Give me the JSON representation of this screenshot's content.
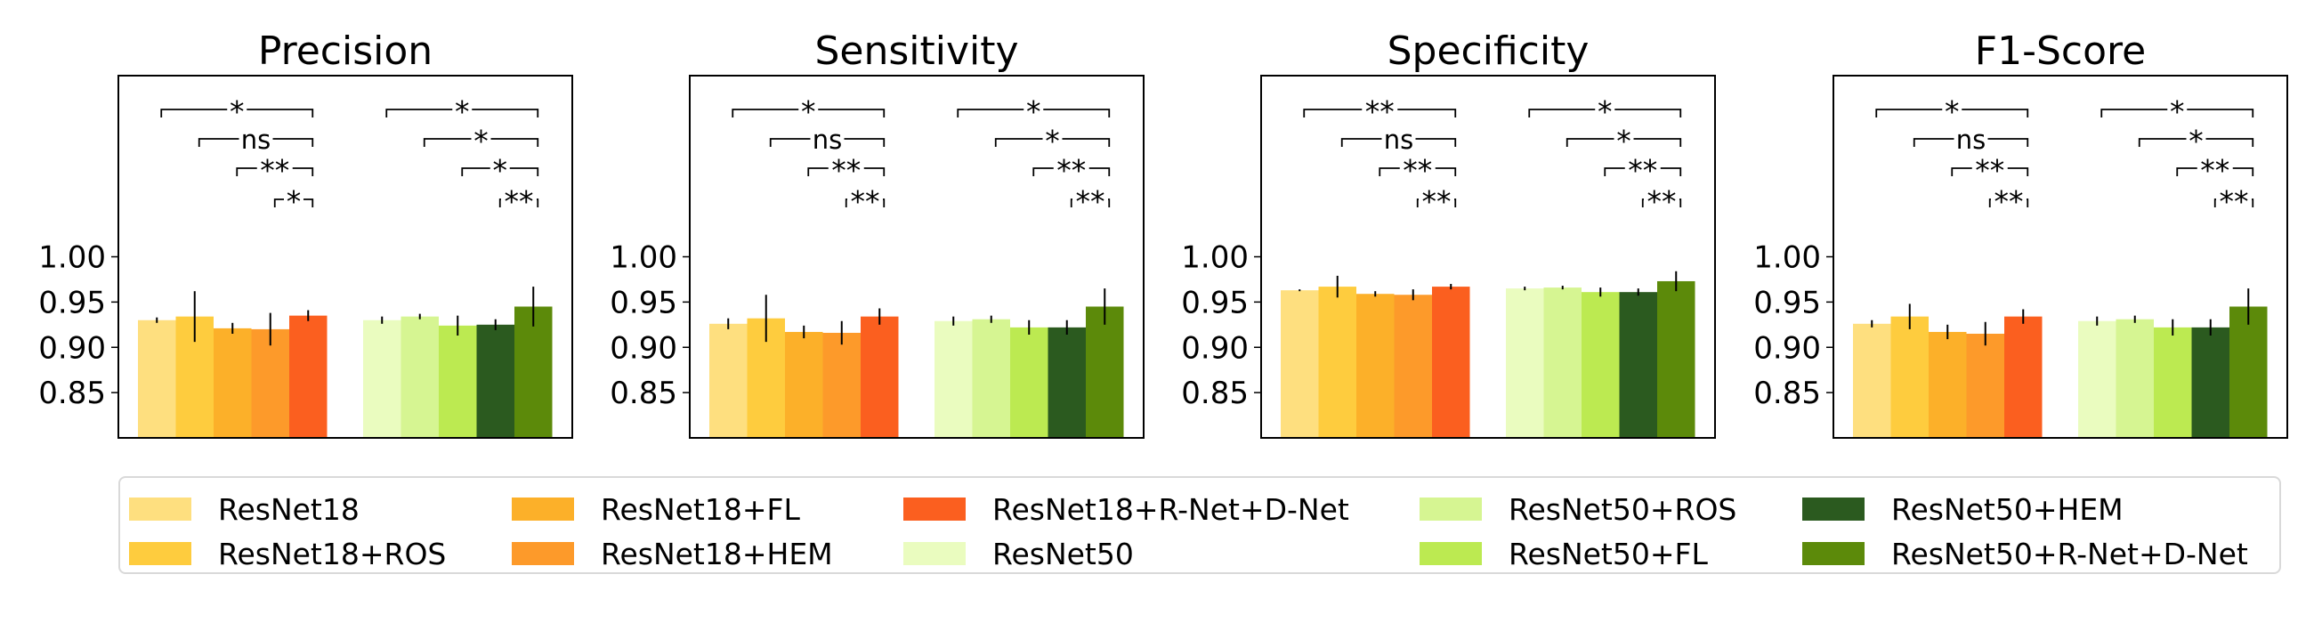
{
  "chart_data": {
    "type": "bar",
    "ylim": [
      0.8,
      1.2
    ],
    "yticks": [
      "0.85",
      "0.90",
      "0.95",
      "1.00"
    ],
    "legend_position": "bottom",
    "series": [
      {
        "name": "ResNet18",
        "color": "#fedf7f",
        "group": 0
      },
      {
        "name": "ResNet18+ROS",
        "color": "#fecc3e",
        "group": 0
      },
      {
        "name": "ResNet18+FL",
        "color": "#fcb029",
        "group": 0
      },
      {
        "name": "ResNet18+HEM",
        "color": "#fd9a2a",
        "group": 0
      },
      {
        "name": "ResNet18+R-Net+D-Net",
        "color": "#fb5f1f",
        "group": 0
      },
      {
        "name": "ResNet50",
        "color": "#eafcbf",
        "group": 1
      },
      {
        "name": "ResNet50+ROS",
        "color": "#d6f592",
        "group": 1
      },
      {
        "name": "ResNet50+FL",
        "color": "#bcea51",
        "group": 1
      },
      {
        "name": "ResNet50+HEM",
        "color": "#2b5a1f",
        "group": 1
      },
      {
        "name": "ResNet50+R-Net+D-Net",
        "color": "#5c8a0a",
        "group": 1
      }
    ],
    "panels": [
      {
        "title": "Precision",
        "values": [
          0.93,
          0.934,
          0.921,
          0.92,
          0.935,
          0.93,
          0.934,
          0.924,
          0.925,
          0.945
        ],
        "errors": [
          0.003,
          0.028,
          0.006,
          0.018,
          0.006,
          0.004,
          0.003,
          0.011,
          0.006,
          0.022
        ],
        "sig": [
          [
            "*",
            "ns",
            "**",
            "*"
          ],
          [
            "*",
            "*",
            "*",
            "**"
          ]
        ]
      },
      {
        "title": "Sensitivity",
        "values": [
          0.926,
          0.932,
          0.917,
          0.916,
          0.934,
          0.929,
          0.931,
          0.922,
          0.922,
          0.945
        ],
        "errors": [
          0.006,
          0.026,
          0.007,
          0.013,
          0.009,
          0.005,
          0.004,
          0.008,
          0.008,
          0.02
        ],
        "sig": [
          [
            "*",
            "ns",
            "**",
            "**"
          ],
          [
            "*",
            "*",
            "**",
            "**"
          ]
        ]
      },
      {
        "title": "Specificity",
        "values": [
          0.963,
          0.967,
          0.959,
          0.958,
          0.967,
          0.965,
          0.966,
          0.961,
          0.961,
          0.973
        ],
        "errors": [
          0.001,
          0.012,
          0.003,
          0.006,
          0.003,
          0.002,
          0.002,
          0.005,
          0.004,
          0.011
        ],
        "sig": [
          [
            "**",
            "ns",
            "**",
            "**"
          ],
          [
            "*",
            "*",
            "**",
            "**"
          ]
        ]
      },
      {
        "title": "F1-Score",
        "values": [
          0.926,
          0.934,
          0.917,
          0.915,
          0.934,
          0.929,
          0.931,
          0.922,
          0.922,
          0.945
        ],
        "errors": [
          0.004,
          0.014,
          0.008,
          0.013,
          0.008,
          0.005,
          0.004,
          0.009,
          0.009,
          0.02
        ],
        "sig": [
          [
            "*",
            "ns",
            "**",
            "**"
          ],
          [
            "*",
            "*",
            "**",
            "**"
          ]
        ]
      }
    ]
  }
}
